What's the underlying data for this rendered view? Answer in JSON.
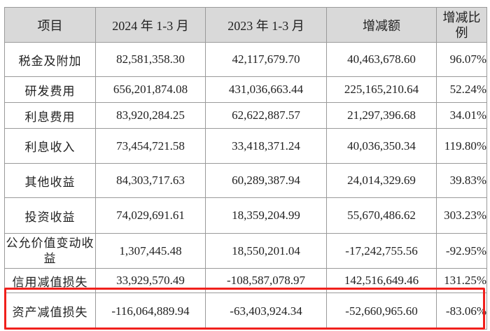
{
  "table": {
    "headers": [
      "项目",
      "2024 年 1-3 月",
      "2023 年 1-3 月",
      "增减额",
      "增减比例"
    ],
    "rows": [
      [
        "税金及附加",
        "82,581,358.30",
        "42,117,679.70",
        "40,463,678.60",
        "96.07%"
      ],
      [
        "研发费用",
        "656,201,874.08",
        "431,036,663.44",
        "225,165,210.64",
        "52.24%"
      ],
      [
        "利息费用",
        "83,920,284.25",
        "62,622,887.57",
        "21,297,396.68",
        "34.01%"
      ],
      [
        "利息收入",
        "73,454,721.58",
        "33,418,371.24",
        "40,036,350.34",
        "119.80%"
      ],
      [
        "其他收益",
        "84,303,717.63",
        "60,289,387.94",
        "24,014,329.69",
        "39.83%"
      ],
      [
        "投资收益",
        "74,029,691.61",
        "18,359,204.99",
        "55,670,486.62",
        "303.23%"
      ],
      [
        "公允价值变动收益",
        "1,307,445.48",
        "18,550,201.04",
        "-17,242,755.56",
        "-92.95%"
      ],
      [
        "信用减值损失",
        "33,929,570.49",
        "-108,587,078.97",
        "142,516,649.46",
        "131.25%"
      ],
      [
        "资产减值损失",
        "-116,064,889.94",
        "-63,403,924.34",
        "-52,660,965.60",
        "-83.06%"
      ]
    ],
    "highlight_row": 8,
    "highlight_color": "#f0201c",
    "header_bg": "#d9d9d9"
  }
}
